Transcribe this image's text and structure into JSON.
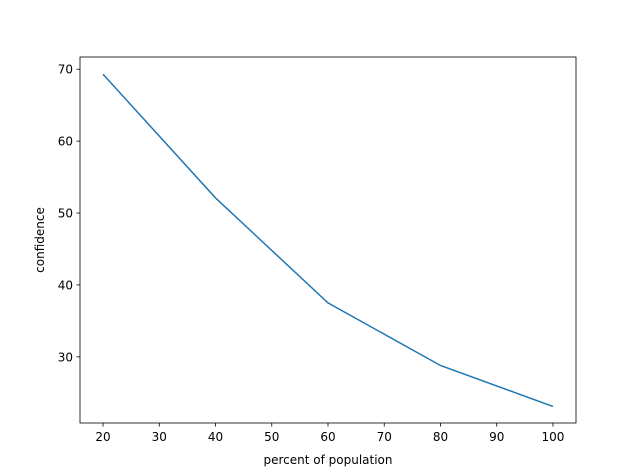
{
  "chart_data": {
    "type": "line",
    "x_label": "percent of population",
    "y_label": "confidence",
    "x": [
      20,
      40,
      60,
      80,
      100
    ],
    "series": [
      {
        "name": "confidence",
        "color": "#1f77b4",
        "values": [
          69.3,
          52.1,
          37.5,
          28.8,
          23.1
        ]
      }
    ],
    "xlim": [
      15.9,
      104.1
    ],
    "xticks": [
      20,
      30,
      40,
      50,
      60,
      70,
      80,
      90,
      100
    ],
    "ylim": [
      20.8,
      71.7
    ],
    "yticks": [
      30,
      40,
      50,
      60,
      70
    ],
    "grid": false,
    "legend": false
  }
}
